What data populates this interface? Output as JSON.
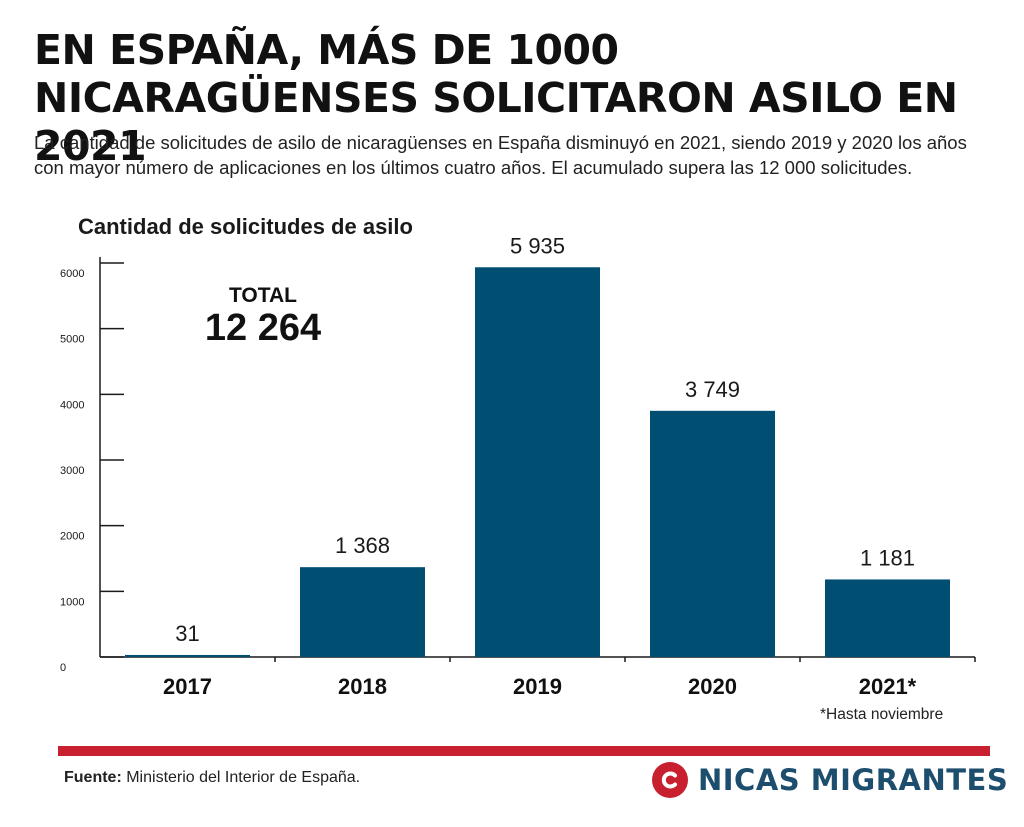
{
  "headline": "EN ESPAÑA, MÁS DE 1000 NICARAGÜENSES SOLICITARON ASILO EN 2021",
  "dek": "La cantidad de solicitudes de asilo de nicaragüenses en España disminuyó en 2021, siendo 2019 y 2020 los años con mayor número de aplicaciones en los últimos cuatro años. El acumulado supera las 12 000 solicitudes.",
  "total": {
    "label": "TOTAL",
    "value": "12 264"
  },
  "chart_data": {
    "type": "bar",
    "title": "Cantidad de solicitudes de asilo",
    "categories": [
      "2017",
      "2018",
      "2019",
      "2020",
      "2021*"
    ],
    "values": [
      31,
      1368,
      5935,
      3749,
      1181
    ],
    "value_labels": [
      "31",
      "1 368",
      "5 935",
      "3 749",
      "1 181"
    ],
    "yticks": [
      0,
      1000,
      2000,
      3000,
      4000,
      5000,
      6000
    ],
    "ylim": [
      0,
      6000
    ],
    "xlabel": "",
    "ylabel": "",
    "grid": false,
    "bar_color": "#004f72"
  },
  "footnote": "*Hasta noviembre",
  "source": {
    "label": "Fuente:",
    "text": " Ministerio del Interior de España."
  },
  "brand": {
    "name": "NICAS MIGRANTES",
    "mark_color": "#c8202f",
    "text_color": "#1d4e6e",
    "rule_color": "#c8202f"
  }
}
